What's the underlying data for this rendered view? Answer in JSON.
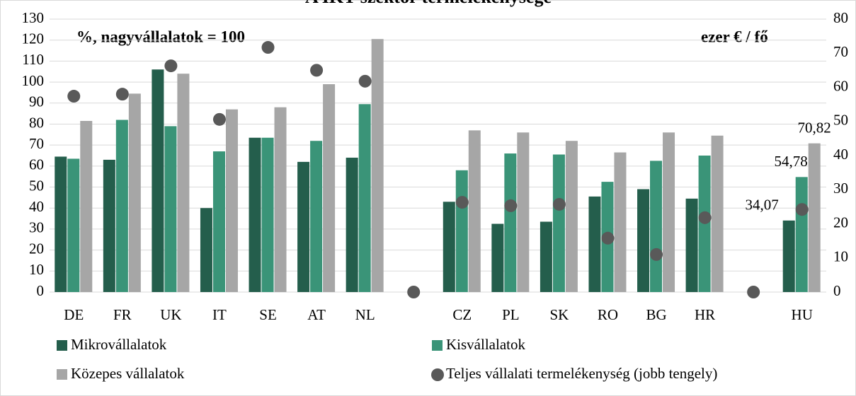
{
  "chart_data": {
    "type": "bar",
    "title": "A IKT-szektor termelékenysége",
    "annotations": [
      "%, nagyvállalatok = 100",
      "ezer € / fő"
    ],
    "categories": [
      "DE",
      "FR",
      "UK",
      "IT",
      "SE",
      "AT",
      "NL",
      null,
      "CZ",
      "PL",
      "SK",
      "RO",
      "BG",
      "HR",
      null,
      "HU"
    ],
    "series": [
      {
        "name": "Mikrovállalatok",
        "color": "#245e4c",
        "values": [
          64.5,
          63,
          106,
          40,
          73.5,
          62,
          64,
          null,
          43,
          32.5,
          33.5,
          45.5,
          49,
          44.5,
          null,
          34.07
        ],
        "value_labels": [
          null,
          null,
          null,
          null,
          null,
          null,
          null,
          null,
          null,
          null,
          null,
          null,
          null,
          null,
          null,
          "34,07"
        ]
      },
      {
        "name": "Kisvállalatok",
        "color": "#3a9478",
        "values": [
          63.5,
          82,
          79,
          67,
          73.5,
          72,
          89.5,
          null,
          58,
          66,
          65.5,
          52.5,
          62.5,
          65,
          null,
          54.78
        ],
        "value_labels": [
          null,
          null,
          null,
          null,
          null,
          null,
          null,
          null,
          null,
          null,
          null,
          null,
          null,
          null,
          null,
          "54,78"
        ]
      },
      {
        "name": "Közepes vállalatok",
        "color": "#a6a6a6",
        "values": [
          81.5,
          94.5,
          104,
          87,
          88,
          99,
          120.5,
          null,
          77,
          76,
          72,
          66.5,
          76,
          74.5,
          null,
          70.82
        ],
        "value_labels": [
          null,
          null,
          null,
          null,
          null,
          null,
          null,
          null,
          null,
          null,
          null,
          null,
          null,
          null,
          null,
          "70,82"
        ]
      },
      {
        "name": "Teljes vállalati termelékenység (jobb tengely)",
        "type": "scatter",
        "axis": "y2",
        "color": "#595959",
        "values": [
          57.4,
          58,
          66.3,
          50.6,
          71.7,
          65,
          61.8,
          0,
          26.3,
          25.3,
          25.7,
          15.8,
          11,
          21.8,
          0,
          24.2
        ]
      }
    ],
    "ylim": [
      0,
      130
    ],
    "yticks": [
      0,
      10,
      20,
      30,
      40,
      50,
      60,
      70,
      80,
      90,
      100,
      110,
      120,
      130
    ],
    "y2lim": [
      0,
      80
    ],
    "y2ticks": [
      0,
      10,
      20,
      30,
      40,
      50,
      60,
      70,
      80
    ],
    "grid": true,
    "legend": "bottom"
  }
}
